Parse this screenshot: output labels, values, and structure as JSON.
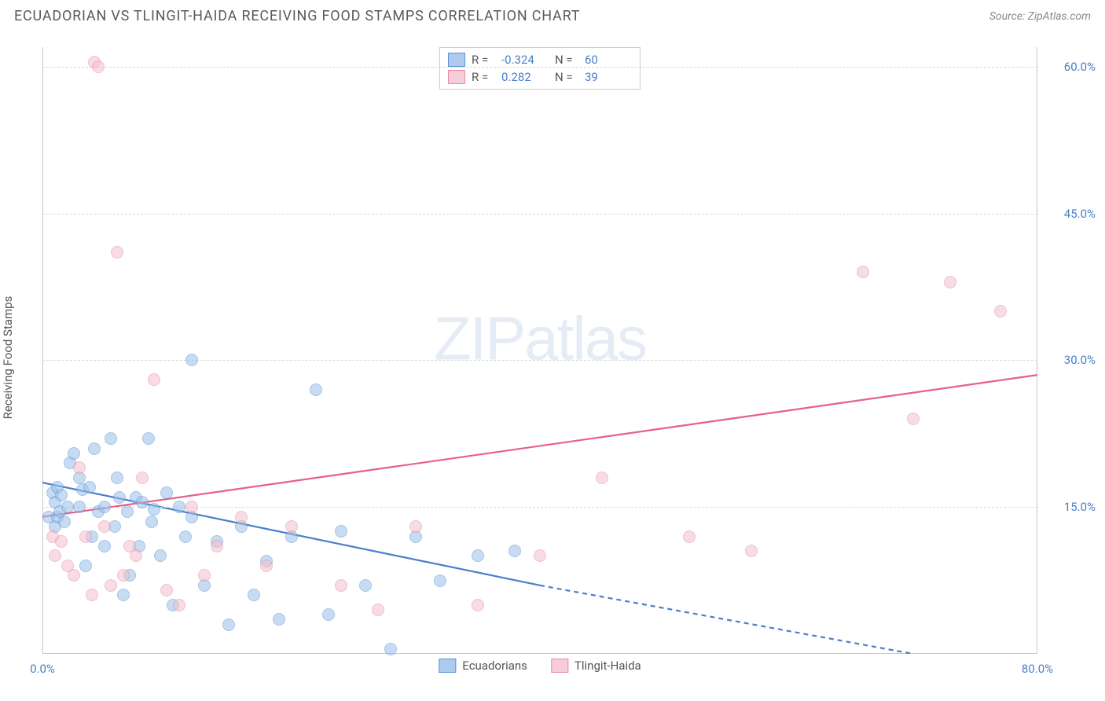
{
  "header": {
    "title": "ECUADORIAN VS TLINGIT-HAIDA RECEIVING FOOD STAMPS CORRELATION CHART",
    "source": "Source: ZipAtlas.com"
  },
  "ylabel": "Receiving Food Stamps",
  "watermark": {
    "zip": "ZIP",
    "atlas": "atlas"
  },
  "chart": {
    "type": "scatter",
    "xlim": [
      0,
      80
    ],
    "ylim": [
      0,
      62
    ],
    "x_ticks": [
      {
        "v": 0,
        "label": "0.0%"
      },
      {
        "v": 80,
        "label": "80.0%"
      }
    ],
    "y_ticks": [
      {
        "v": 15,
        "label": "15.0%"
      },
      {
        "v": 30,
        "label": "30.0%"
      },
      {
        "v": 45,
        "label": "45.0%"
      },
      {
        "v": 60,
        "label": "60.0%"
      }
    ],
    "grid_color": "#d8d8d8",
    "background_color": "#ffffff",
    "marker_radius": 8,
    "marker_opacity": 0.55,
    "series": [
      {
        "name": "Ecuadorians",
        "fill": "#9bc0e8",
        "stroke": "#5a93d4",
        "points": [
          [
            0.5,
            14
          ],
          [
            0.8,
            16.5
          ],
          [
            1,
            13
          ],
          [
            1,
            15.5
          ],
          [
            1.2,
            17
          ],
          [
            1.2,
            14
          ],
          [
            1.4,
            14.5
          ],
          [
            1.5,
            16.2
          ],
          [
            1.8,
            13.5
          ],
          [
            2,
            15
          ],
          [
            2.2,
            19.5
          ],
          [
            2.5,
            20.5
          ],
          [
            3,
            15
          ],
          [
            3,
            18
          ],
          [
            3.2,
            16.8
          ],
          [
            3.5,
            9
          ],
          [
            3.8,
            17
          ],
          [
            4,
            12
          ],
          [
            4.2,
            21
          ],
          [
            4.5,
            14.5
          ],
          [
            5,
            11
          ],
          [
            5,
            15
          ],
          [
            5.5,
            22
          ],
          [
            5.8,
            13
          ],
          [
            6,
            18
          ],
          [
            6.2,
            16
          ],
          [
            6.5,
            6
          ],
          [
            6.8,
            14.5
          ],
          [
            7,
            8
          ],
          [
            7.5,
            16
          ],
          [
            7.8,
            11
          ],
          [
            8,
            15.5
          ],
          [
            8.5,
            22
          ],
          [
            8.8,
            13.5
          ],
          [
            9,
            14.8
          ],
          [
            9.5,
            10
          ],
          [
            10,
            16.5
          ],
          [
            10.5,
            5
          ],
          [
            11,
            15
          ],
          [
            11.5,
            12
          ],
          [
            12,
            30
          ],
          [
            12,
            14
          ],
          [
            13,
            7
          ],
          [
            14,
            11.5
          ],
          [
            15,
            3
          ],
          [
            16,
            13
          ],
          [
            17,
            6
          ],
          [
            18,
            9.5
          ],
          [
            19,
            3.5
          ],
          [
            20,
            12
          ],
          [
            22,
            27
          ],
          [
            23,
            4
          ],
          [
            24,
            12.5
          ],
          [
            26,
            7
          ],
          [
            28,
            0.5
          ],
          [
            30,
            12
          ],
          [
            32,
            7.5
          ],
          [
            35,
            10
          ],
          [
            38,
            10.5
          ]
        ]
      },
      {
        "name": "Tlingit-Haida",
        "fill": "#f4c0cd",
        "stroke": "#e88aa3",
        "points": [
          [
            0.8,
            12
          ],
          [
            1,
            10
          ],
          [
            1.5,
            11.5
          ],
          [
            2,
            9
          ],
          [
            2.5,
            8
          ],
          [
            3,
            19
          ],
          [
            3.5,
            12
          ],
          [
            4,
            6
          ],
          [
            4.2,
            60.5
          ],
          [
            4.5,
            60
          ],
          [
            5,
            13
          ],
          [
            5.5,
            7
          ],
          [
            6,
            41
          ],
          [
            6.5,
            8
          ],
          [
            7,
            11
          ],
          [
            7.5,
            10
          ],
          [
            8,
            18
          ],
          [
            9,
            28
          ],
          [
            10,
            6.5
          ],
          [
            11,
            5
          ],
          [
            12,
            15
          ],
          [
            13,
            8
          ],
          [
            14,
            11
          ],
          [
            16,
            14
          ],
          [
            18,
            9
          ],
          [
            20,
            13
          ],
          [
            24,
            7
          ],
          [
            27,
            4.5
          ],
          [
            30,
            13
          ],
          [
            35,
            5
          ],
          [
            40,
            10
          ],
          [
            45,
            18
          ],
          [
            52,
            12
          ],
          [
            57,
            10.5
          ],
          [
            66,
            39
          ],
          [
            70,
            24
          ],
          [
            73,
            38
          ],
          [
            77,
            35
          ]
        ]
      }
    ],
    "trend_lines": [
      {
        "series": "Ecuadorians",
        "color": "#4a7fc9",
        "width": 2.2,
        "x1": 0,
        "y1": 17.5,
        "x_solid_end": 40,
        "y_solid_end": 7,
        "x2": 70,
        "y2": 0,
        "dash_after_solid": true
      },
      {
        "series": "Tlingit-Haida",
        "color": "#e85f88",
        "width": 2.2,
        "x1": 0,
        "y1": 14,
        "x2": 80,
        "y2": 28.5
      }
    ]
  },
  "legend_top": {
    "rows": [
      {
        "swatch_fill": "#aecbed",
        "swatch_stroke": "#5a93d4",
        "r_label": "R =",
        "r_val": "-0.324",
        "n_label": "N =",
        "n_val": "60"
      },
      {
        "swatch_fill": "#f6cdd8",
        "swatch_stroke": "#e88aa3",
        "r_label": "R =",
        "r_val": "0.282",
        "n_label": "N =",
        "n_val": "39"
      }
    ]
  },
  "legend_bottom": {
    "items": [
      {
        "swatch_fill": "#aecbed",
        "swatch_stroke": "#5a93d4",
        "label": "Ecuadorians"
      },
      {
        "swatch_fill": "#f6cdd8",
        "swatch_stroke": "#e88aa3",
        "label": "Tlingit-Haida"
      }
    ]
  }
}
